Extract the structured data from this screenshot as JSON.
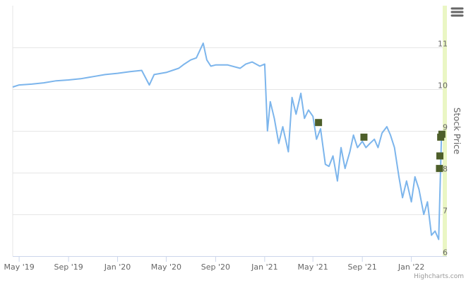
{
  "chart_data": {
    "type": "line",
    "ylabel": "Stock Price",
    "ylim": [
      6,
      12
    ],
    "x_ticks": [
      "May '19",
      "Sep '19",
      "Jan '20",
      "May '20",
      "Sep '20",
      "Jan '21",
      "May '21",
      "Sep '21",
      "Jan '22"
    ],
    "x_tick_dates": [
      "2019-05-01",
      "2019-09-01",
      "2020-01-01",
      "2020-05-01",
      "2020-09-01",
      "2021-01-01",
      "2021-05-01",
      "2021-09-01",
      "2022-01-01"
    ],
    "xlim": [
      "2019-04-15",
      "2022-03-20"
    ],
    "y_ticks": [
      6,
      7,
      8,
      9,
      10,
      11
    ],
    "grid": true,
    "series": [
      {
        "x": [
          "2019-04-15",
          "2019-05-01",
          "2019-06-01",
          "2019-07-01",
          "2019-08-01",
          "2019-09-01",
          "2019-10-01",
          "2019-11-01",
          "2019-12-01",
          "2020-01-01",
          "2020-02-01",
          "2020-03-01",
          "2020-03-20",
          "2020-04-01",
          "2020-05-01",
          "2020-06-01",
          "2020-06-15",
          "2020-07-01",
          "2020-07-15",
          "2020-08-01",
          "2020-08-10",
          "2020-08-20",
          "2020-09-01",
          "2020-10-01",
          "2020-11-01",
          "2020-11-15",
          "2020-12-01",
          "2020-12-20",
          "2021-01-01",
          "2021-01-08",
          "2021-01-15",
          "2021-01-25",
          "2021-02-05",
          "2021-02-15",
          "2021-03-01",
          "2021-03-10",
          "2021-03-20",
          "2021-04-01",
          "2021-04-10",
          "2021-04-20",
          "2021-05-01",
          "2021-05-10",
          "2021-05-20",
          "2021-06-01",
          "2021-06-10",
          "2021-06-20",
          "2021-07-01",
          "2021-07-10",
          "2021-07-20",
          "2021-08-01",
          "2021-08-10",
          "2021-08-20",
          "2021-09-01",
          "2021-09-10",
          "2021-09-20",
          "2021-10-01",
          "2021-10-10",
          "2021-10-20",
          "2021-11-01",
          "2021-11-10",
          "2021-11-20",
          "2021-12-01",
          "2021-12-10",
          "2021-12-20",
          "2022-01-01",
          "2022-01-10",
          "2022-01-20",
          "2022-02-01",
          "2022-02-10",
          "2022-02-20",
          "2022-03-01",
          "2022-03-10",
          "2022-03-17"
        ],
        "y": [
          10.05,
          10.1,
          10.12,
          10.15,
          10.2,
          10.22,
          10.25,
          10.3,
          10.35,
          10.38,
          10.42,
          10.45,
          10.1,
          10.35,
          10.4,
          10.5,
          10.6,
          10.7,
          10.75,
          11.1,
          10.7,
          10.55,
          10.58,
          10.58,
          10.5,
          10.6,
          10.65,
          10.55,
          10.6,
          9.0,
          9.7,
          9.3,
          8.7,
          9.1,
          8.5,
          9.8,
          9.4,
          9.9,
          9.3,
          9.5,
          9.35,
          8.8,
          9.05,
          8.2,
          8.15,
          8.4,
          7.8,
          8.6,
          8.1,
          8.5,
          8.9,
          8.6,
          8.75,
          8.6,
          8.7,
          8.8,
          8.6,
          8.95,
          9.1,
          8.9,
          8.6,
          7.9,
          7.4,
          7.8,
          7.3,
          7.9,
          7.6,
          7.0,
          7.3,
          6.5,
          6.6,
          6.4,
          8.9
        ]
      }
    ],
    "markers": [
      {
        "x": "2021-05-15",
        "y": 9.2
      },
      {
        "x": "2021-09-05",
        "y": 8.85
      },
      {
        "x": "2022-03-12",
        "y": 8.1
      },
      {
        "x": "2022-03-13",
        "y": 8.4
      },
      {
        "x": "2022-03-15",
        "y": 8.85
      },
      {
        "x": "2022-03-18",
        "y": 8.92
      }
    ],
    "line_color": "#7cb5ec",
    "marker_color": "#4d5e29",
    "band_color": "#eaf6c4",
    "grid_color": "#e6e6e6"
  },
  "credits": "Highcharts.com",
  "menu_icon": "hamburger-icon"
}
